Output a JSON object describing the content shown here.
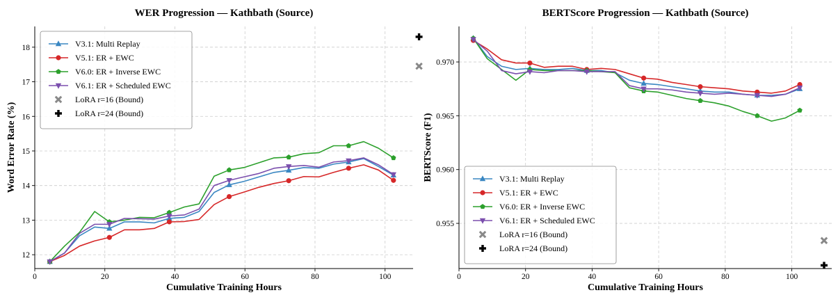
{
  "chart_data": [
    {
      "type": "line",
      "title": "WER Progression — Kathbath (Source)",
      "xlabel": "Cumulative Training Hours",
      "ylabel": "Word Error Rate (%)",
      "xlim": [
        0,
        108
      ],
      "ylim": [
        11.6,
        18.6
      ],
      "xticks": [
        "0",
        "20",
        "40",
        "60",
        "80",
        "100"
      ],
      "yticks": [
        "12",
        "13",
        "14",
        "15",
        "16",
        "17",
        "18"
      ],
      "grid": true,
      "legend_position": "top-left",
      "series": [
        {
          "name": "V3.1: Multi Replay",
          "color": "#3a87c2",
          "marker": "triangle-up",
          "x": [
            4.3,
            8.5,
            12.8,
            17.1,
            21.3,
            25.6,
            29.9,
            34.1,
            38.4,
            42.7,
            46.9,
            51.2,
            55.5,
            59.7,
            64.0,
            68.3,
            72.5,
            76.8,
            81.1,
            85.3,
            89.6,
            93.9,
            98.1,
            102.4
          ],
          "y": [
            11.8,
            12.05,
            12.55,
            12.8,
            12.76,
            12.95,
            12.95,
            12.92,
            13.05,
            13.08,
            13.25,
            13.8,
            14.02,
            14.12,
            14.25,
            14.38,
            14.44,
            14.52,
            14.5,
            14.62,
            14.68,
            14.78,
            14.55,
            14.3
          ]
        },
        {
          "name": "V5.1: ER + EWC",
          "color": "#d62728",
          "marker": "circle",
          "x": [
            4.3,
            8.5,
            12.8,
            17.1,
            21.3,
            25.6,
            29.9,
            34.1,
            38.4,
            42.7,
            46.9,
            51.2,
            55.5,
            59.7,
            64.0,
            68.3,
            72.5,
            76.8,
            81.1,
            85.3,
            89.6,
            93.9,
            98.1,
            102.4
          ],
          "y": [
            11.8,
            11.98,
            12.25,
            12.4,
            12.5,
            12.72,
            12.72,
            12.76,
            12.95,
            12.96,
            13.02,
            13.45,
            13.68,
            13.81,
            13.95,
            14.06,
            14.14,
            14.26,
            14.25,
            14.38,
            14.5,
            14.6,
            14.45,
            14.15
          ]
        },
        {
          "name": "V6.0: ER + Inverse EWC",
          "color": "#2ca02c",
          "marker": "pentagon",
          "x": [
            4.3,
            8.5,
            12.8,
            17.1,
            21.3,
            25.6,
            29.9,
            34.1,
            38.4,
            42.7,
            46.9,
            51.2,
            55.5,
            59.7,
            64.0,
            68.3,
            72.5,
            76.8,
            81.1,
            85.3,
            89.6,
            93.9,
            98.1,
            102.4
          ],
          "y": [
            11.8,
            12.25,
            12.65,
            13.25,
            12.95,
            13.0,
            13.08,
            13.07,
            13.22,
            13.38,
            13.47,
            14.27,
            14.45,
            14.52,
            14.66,
            14.8,
            14.82,
            14.92,
            14.95,
            15.15,
            15.15,
            15.27,
            15.08,
            14.8
          ]
        },
        {
          "name": "V6.1: ER + Scheduled EWC",
          "color": "#7b4fad",
          "marker": "triangle-down",
          "x": [
            4.3,
            8.5,
            12.8,
            17.1,
            21.3,
            25.6,
            29.9,
            34.1,
            38.4,
            42.7,
            46.9,
            51.2,
            55.5,
            59.7,
            64.0,
            68.3,
            72.5,
            76.8,
            81.1,
            85.3,
            89.6,
            93.9,
            98.1,
            102.4
          ],
          "y": [
            11.8,
            12.05,
            12.62,
            12.88,
            12.88,
            13.05,
            13.04,
            13.03,
            13.12,
            13.15,
            13.32,
            14.0,
            14.15,
            14.25,
            14.35,
            14.5,
            14.55,
            14.58,
            14.53,
            14.68,
            14.72,
            14.8,
            14.6,
            14.32
          ]
        }
      ],
      "points": [
        {
          "name": "LoRA r=16 (Bound)",
          "color": "#888888",
          "marker": "x",
          "x": 109.7,
          "y": 17.45
        },
        {
          "name": "LoRA r=24 (Bound)",
          "color": "#000000",
          "marker": "plus",
          "x": 109.7,
          "y": 18.3
        }
      ]
    },
    {
      "type": "line",
      "title": "BERTScore Progression — Kathbath (Source)",
      "xlabel": "Cumulative Training Hours",
      "ylabel": "BERTScore (F1)",
      "xlim": [
        0,
        112
      ],
      "ylim": [
        0.9508,
        0.9733
      ],
      "xticks": [
        "0",
        "20",
        "40",
        "60",
        "80",
        "100"
      ],
      "yticks": [
        "0.955",
        "0.960",
        "0.965",
        "0.970"
      ],
      "grid": true,
      "legend_position": "bottom-left",
      "series": [
        {
          "name": "V3.1: Multi Replay",
          "color": "#3a87c2",
          "marker": "triangle-up",
          "x": [
            4.3,
            8.5,
            12.8,
            17.1,
            21.3,
            25.6,
            29.9,
            34.1,
            38.4,
            42.7,
            46.9,
            51.2,
            55.5,
            59.7,
            64.0,
            68.3,
            72.5,
            76.8,
            81.1,
            85.3,
            89.6,
            93.9,
            98.1,
            102.4
          ],
          "y": [
            0.9722,
            0.9705,
            0.9696,
            0.9693,
            0.9694,
            0.9693,
            0.9693,
            0.9694,
            0.9692,
            0.9692,
            0.969,
            0.9683,
            0.968,
            0.9679,
            0.9677,
            0.9675,
            0.9673,
            0.9672,
            0.9672,
            0.967,
            0.9669,
            0.9669,
            0.967,
            0.9675
          ]
        },
        {
          "name": "V5.1: ER + EWC",
          "color": "#d62728",
          "marker": "circle",
          "x": [
            4.3,
            8.5,
            12.8,
            17.1,
            21.3,
            25.6,
            29.9,
            34.1,
            38.4,
            42.7,
            46.9,
            51.2,
            55.5,
            59.7,
            64.0,
            68.3,
            72.5,
            76.8,
            81.1,
            85.3,
            89.6,
            93.9,
            98.1,
            102.4
          ],
          "y": [
            0.972,
            0.9712,
            0.9702,
            0.9699,
            0.9699,
            0.9695,
            0.9696,
            0.9696,
            0.9693,
            0.9694,
            0.9693,
            0.9689,
            0.9685,
            0.9684,
            0.9681,
            0.9679,
            0.9677,
            0.9676,
            0.9675,
            0.9673,
            0.9672,
            0.9671,
            0.9673,
            0.9679
          ]
        },
        {
          "name": "V6.0: ER + Inverse EWC",
          "color": "#2ca02c",
          "marker": "pentagon",
          "x": [
            4.3,
            8.5,
            12.8,
            17.1,
            21.3,
            25.6,
            29.9,
            34.1,
            38.4,
            42.7,
            46.9,
            51.2,
            55.5,
            59.7,
            64.0,
            68.3,
            72.5,
            76.8,
            81.1,
            85.3,
            89.6,
            93.9,
            98.1,
            102.4
          ],
          "y": [
            0.9722,
            0.9703,
            0.9693,
            0.9683,
            0.9693,
            0.9692,
            0.9692,
            0.9692,
            0.9692,
            0.9691,
            0.969,
            0.9676,
            0.9673,
            0.9672,
            0.9669,
            0.9666,
            0.9664,
            0.9662,
            0.9659,
            0.9654,
            0.965,
            0.9645,
            0.9648,
            0.9655
          ]
        },
        {
          "name": "V6.1: ER + Scheduled EWC",
          "color": "#7b4fad",
          "marker": "triangle-down",
          "x": [
            4.3,
            8.5,
            12.8,
            17.1,
            21.3,
            25.6,
            29.9,
            34.1,
            38.4,
            42.7,
            46.9,
            51.2,
            55.5,
            59.7,
            64.0,
            68.3,
            72.5,
            76.8,
            81.1,
            85.3,
            89.6,
            93.9,
            98.1,
            102.4
          ],
          "y": [
            0.9721,
            0.971,
            0.9692,
            0.9689,
            0.9691,
            0.969,
            0.9692,
            0.9692,
            0.9691,
            0.9691,
            0.9691,
            0.9678,
            0.9675,
            0.9675,
            0.9674,
            0.9672,
            0.9671,
            0.967,
            0.9671,
            0.967,
            0.9669,
            0.9668,
            0.967,
            0.9676
          ]
        }
      ],
      "points": [
        {
          "name": "LoRA r=16 (Bound)",
          "color": "#888888",
          "marker": "x",
          "x": 109.7,
          "y": 0.9534
        },
        {
          "name": "LoRA r=24 (Bound)",
          "color": "#000000",
          "marker": "plus",
          "x": 109.7,
          "y": 0.9511
        }
      ]
    }
  ]
}
